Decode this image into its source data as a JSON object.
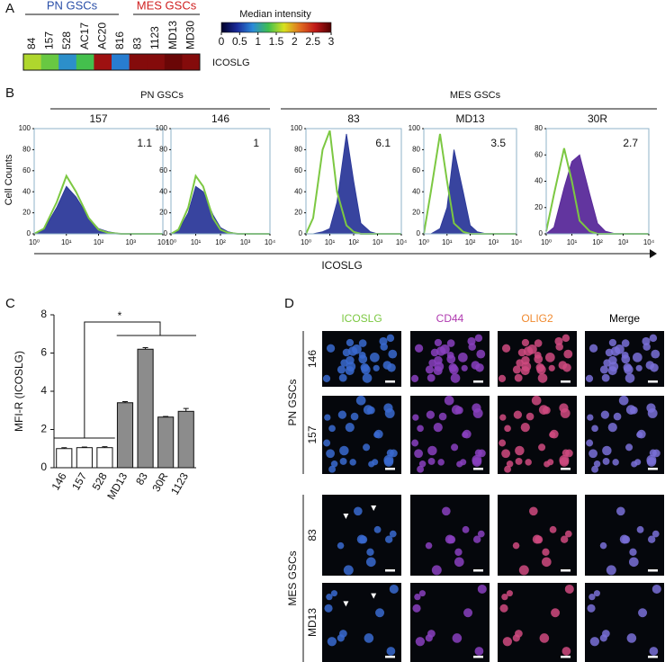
{
  "panels": [
    "A",
    "B",
    "C",
    "D"
  ],
  "figure_a": {
    "groups": [
      "PN GSCs",
      "MES GSCs"
    ]
  },
  "figure_b": {
    "groups": [
      "PN GSCs",
      "MES GSCs"
    ],
    "ylabel": "Cell Counts",
    "xlabel": "ICOSLG"
  },
  "chart_data": [
    {
      "type": "heatmap",
      "categories": [
        "84",
        "157",
        "528",
        "AC17",
        "AC20",
        "816",
        "83",
        "1123",
        "MD13",
        "MD30"
      ],
      "rows": [
        "ICOSLG"
      ],
      "values": [
        1.6,
        1.4,
        0.9,
        1.3,
        2.7,
        0.8,
        2.8,
        2.8,
        2.9,
        2.8
      ],
      "colorbar": {
        "title": "Median intensity",
        "lim": [
          0,
          3
        ],
        "ticks": [
          0,
          0.5,
          1,
          1.5,
          2,
          2.5,
          3
        ],
        "colors": [
          "#000028",
          "#1a2a9a",
          "#2a8ad8",
          "#3fbf4f",
          "#d8e020",
          "#e07020",
          "#c01818",
          "#500000"
        ]
      }
    },
    {
      "type": "histogram",
      "title": "157",
      "annotation": "1.1",
      "x": [
        1,
        2,
        5,
        10,
        20,
        50,
        100,
        200,
        500,
        1000,
        2000,
        5000,
        10000
      ],
      "log_x": true,
      "xlim": [
        1,
        10000
      ],
      "xticks": [
        {
          "value": 1,
          "label": "10⁰"
        },
        {
          "value": 10,
          "label": "10¹"
        },
        {
          "value": 100,
          "label": "10²"
        },
        {
          "value": 1000,
          "label": "10³"
        },
        {
          "value": 10000,
          "label": "10⁴"
        }
      ],
      "ylim": [
        0,
        100
      ],
      "yticks": [
        0,
        20,
        40,
        60,
        80,
        100
      ],
      "series": [
        {
          "color": "#7cc842",
          "values": [
            0,
            5,
            30,
            55,
            40,
            15,
            4,
            1,
            0,
            0,
            0,
            0,
            0
          ]
        },
        {
          "color": "#2d3a9a",
          "values": [
            0,
            4,
            25,
            45,
            35,
            15,
            5,
            2,
            0,
            0,
            0,
            0,
            0
          ]
        }
      ]
    },
    {
      "type": "histogram",
      "title": "146",
      "annotation": "1",
      "x": [
        1,
        2,
        5,
        10,
        20,
        50,
        100,
        200,
        500,
        1000,
        2000,
        5000,
        10000
      ],
      "log_x": true,
      "xlim": [
        1,
        10000
      ],
      "xticks": [
        {
          "value": 1,
          "label": "10⁰"
        },
        {
          "value": 10,
          "label": "10¹"
        },
        {
          "value": 100,
          "label": "10²"
        },
        {
          "value": 1000,
          "label": "10³"
        },
        {
          "value": 10000,
          "label": "10⁴"
        }
      ],
      "ylim": [
        0,
        100
      ],
      "yticks": [
        0,
        20,
        40,
        60,
        80,
        100
      ],
      "series": [
        {
          "color": "#7cc842",
          "values": [
            0,
            4,
            25,
            55,
            45,
            15,
            4,
            1,
            0,
            0,
            0,
            0,
            0
          ]
        },
        {
          "color": "#2d3a9a",
          "values": [
            0,
            3,
            20,
            45,
            40,
            18,
            6,
            2,
            0,
            0,
            0,
            0,
            0
          ]
        }
      ]
    },
    {
      "type": "histogram",
      "title": "83",
      "annotation": "6.1",
      "x": [
        1,
        2,
        5,
        10,
        20,
        50,
        100,
        200,
        500,
        1000,
        2000,
        5000,
        10000
      ],
      "log_x": true,
      "xlim": [
        1,
        10000
      ],
      "xticks": [
        {
          "value": 1,
          "label": "10⁰"
        },
        {
          "value": 10,
          "label": "10¹"
        },
        {
          "value": 100,
          "label": "10²"
        },
        {
          "value": 1000,
          "label": "10³"
        },
        {
          "value": 10000,
          "label": "10⁴"
        }
      ],
      "ylim": [
        0,
        100
      ],
      "yticks": [
        0,
        20,
        40,
        60,
        80,
        100
      ],
      "series": [
        {
          "color": "#7cc842",
          "values": [
            0,
            15,
            80,
            98,
            40,
            8,
            2,
            0,
            0,
            0,
            0,
            0,
            0
          ]
        },
        {
          "color": "#2d3a9a",
          "values": [
            0,
            0,
            2,
            5,
            30,
            95,
            50,
            10,
            2,
            0,
            0,
            0,
            0
          ]
        }
      ]
    },
    {
      "type": "histogram",
      "title": "MD13",
      "annotation": "3.5",
      "x": [
        1,
        2,
        5,
        10,
        20,
        50,
        100,
        200,
        500,
        1000,
        2000,
        5000,
        10000
      ],
      "log_x": true,
      "xlim": [
        1,
        10000
      ],
      "xticks": [
        {
          "value": 1,
          "label": "10⁰"
        },
        {
          "value": 10,
          "label": "10¹"
        },
        {
          "value": 100,
          "label": "10²"
        },
        {
          "value": 1000,
          "label": "10³"
        },
        {
          "value": 10000,
          "label": "10⁴"
        }
      ],
      "ylim": [
        0,
        100
      ],
      "yticks": [
        0,
        20,
        40,
        60,
        80,
        100
      ],
      "series": [
        {
          "color": "#7cc842",
          "values": [
            0,
            40,
            95,
            50,
            10,
            2,
            0,
            0,
            0,
            0,
            0,
            0,
            0
          ]
        },
        {
          "color": "#2d3a9a",
          "values": [
            0,
            0,
            5,
            25,
            80,
            40,
            8,
            2,
            0,
            0,
            0,
            0,
            0
          ]
        }
      ]
    },
    {
      "type": "histogram",
      "title": "30R",
      "annotation": "2.7",
      "x": [
        1,
        2,
        5,
        10,
        20,
        50,
        100,
        200,
        500,
        1000,
        2000,
        5000,
        10000
      ],
      "log_x": true,
      "xlim": [
        1,
        10000
      ],
      "xticks": [
        {
          "value": 1,
          "label": "10⁰"
        },
        {
          "value": 10,
          "label": "10¹"
        },
        {
          "value": 100,
          "label": "10²"
        },
        {
          "value": 1000,
          "label": "10³"
        },
        {
          "value": 10000,
          "label": "10⁴"
        }
      ],
      "ylim": [
        0,
        80
      ],
      "yticks": [
        0,
        20,
        40,
        60,
        80
      ],
      "series": [
        {
          "color": "#7cc842",
          "values": [
            2,
            30,
            65,
            40,
            10,
            2,
            0,
            0,
            0,
            0,
            0,
            0,
            0
          ]
        },
        {
          "color": "#5a2a9a",
          "values": [
            0,
            5,
            35,
            55,
            60,
            30,
            8,
            2,
            0,
            0,
            0,
            0,
            0
          ]
        }
      ]
    },
    {
      "type": "bar",
      "ylabel": "MFI-R (ICOSLG)",
      "annotation": "*",
      "categories": [
        "146",
        "157",
        "528",
        "MD13",
        "83",
        "30R",
        "1123"
      ],
      "values": [
        1.0,
        1.05,
        1.05,
        3.4,
        6.2,
        2.65,
        2.95
      ],
      "errors": [
        0.05,
        0.03,
        0.05,
        0.06,
        0.08,
        0.03,
        0.15
      ],
      "colors": [
        "#ffffff",
        "#ffffff",
        "#ffffff",
        "#8c8c8c",
        "#8c8c8c",
        "#8c8c8c",
        "#8c8c8c"
      ],
      "ylim": [
        0,
        8
      ],
      "yticks": [
        0,
        2,
        4,
        6,
        8
      ]
    }
  ],
  "figure_d": {
    "columns": [
      "ICOSLG",
      "CD44",
      "OLIG2",
      "Merge"
    ],
    "column_colors": [
      "#7cc842",
      "#b03ab0",
      "#f08a30",
      "#000000"
    ],
    "groups": [
      {
        "label": "PN GSCs",
        "rows": [
          "146",
          "157"
        ]
      },
      {
        "label": "MES GSCs",
        "rows": [
          "83",
          "MD13"
        ]
      }
    ]
  }
}
